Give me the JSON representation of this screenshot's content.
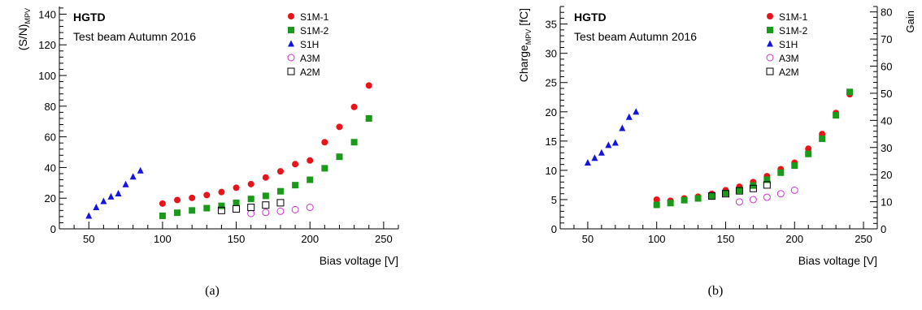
{
  "chart_data": [
    {
      "type": "scatter",
      "panel_caption": "(a)",
      "ylabel": "(S/N)",
      "ylabel_sub": "MPV",
      "xlabel": "Bias voltage [V]",
      "annotations": [
        "HGTD",
        "Test beam Autumn 2016"
      ],
      "xlim": [
        30,
        260
      ],
      "ylim": [
        0,
        145
      ],
      "x_ticks": [
        50,
        100,
        150,
        200,
        250
      ],
      "y_ticks": [
        0,
        20,
        40,
        60,
        80,
        100,
        120,
        140
      ],
      "grid": false,
      "legend_position": "top-right",
      "series": [
        {
          "name": "S1M-1",
          "color": "#e8141a",
          "marker": "filled-circle",
          "x": [
            100,
            110,
            120,
            130,
            140,
            150,
            160,
            170,
            180,
            190,
            200,
            210,
            220,
            230,
            240
          ],
          "y": [
            16.5,
            18.8,
            20.2,
            22,
            24,
            26.8,
            29.2,
            33.5,
            37.5,
            42.2,
            44.6,
            56.5,
            66.5,
            79.5,
            93.5
          ]
        },
        {
          "name": "S1M-2",
          "color": "#1a9a1a",
          "marker": "filled-square",
          "x": [
            100,
            110,
            120,
            130,
            140,
            150,
            160,
            170,
            180,
            190,
            200,
            210,
            220,
            230,
            240
          ],
          "y": [
            8.5,
            10.5,
            12,
            13.5,
            15,
            17,
            19.5,
            21.5,
            24.5,
            28.5,
            32,
            39.5,
            47,
            56.5,
            72
          ]
        },
        {
          "name": "S1H",
          "color": "#1414e0",
          "marker": "filled-triangle",
          "x": [
            50,
            55,
            60,
            65,
            70,
            75,
            80,
            85
          ],
          "y": [
            8.5,
            14,
            18,
            21,
            23,
            29,
            34,
            38
          ]
        },
        {
          "name": "A3M",
          "color": "#cc33cc",
          "marker": "open-circle",
          "x": [
            160,
            170,
            180,
            190,
            200
          ],
          "y": [
            10,
            10.7,
            11.5,
            12.5,
            14
          ]
        },
        {
          "name": "A2M",
          "color": "#000000",
          "marker": "open-square",
          "x": [
            140,
            150,
            160,
            170,
            180
          ],
          "y": [
            12,
            13,
            14,
            15.5,
            17
          ]
        }
      ]
    },
    {
      "type": "scatter",
      "panel_caption": "(b)",
      "ylabel": "Charge",
      "ylabel_sub": "MPV",
      "ylabel_unit": "[fC]",
      "y2label": "Gain",
      "xlabel": "Bias voltage [V]",
      "annotations": [
        "HGTD",
        "Test beam Autumn 2016"
      ],
      "xlim": [
        30,
        260
      ],
      "ylim": [
        0,
        38
      ],
      "y2lim": [
        0,
        82
      ],
      "x_ticks": [
        50,
        100,
        150,
        200,
        250
      ],
      "y_ticks": [
        0,
        5,
        10,
        15,
        20,
        25,
        30,
        35
      ],
      "y2_ticks": [
        0,
        10,
        20,
        30,
        40,
        50,
        60,
        70,
        80
      ],
      "grid": false,
      "legend_position": "top-right",
      "series": [
        {
          "name": "S1M-1",
          "color": "#e8141a",
          "marker": "filled-circle",
          "x": [
            100,
            110,
            120,
            130,
            140,
            150,
            160,
            170,
            180,
            190,
            200,
            210,
            220,
            230,
            240
          ],
          "y": [
            5,
            4.8,
            5.2,
            5.5,
            6,
            6.6,
            7.2,
            8,
            9,
            10.2,
            11.3,
            13.7,
            16.2,
            19.8,
            23
          ]
        },
        {
          "name": "S1M-2",
          "color": "#1a9a1a",
          "marker": "filled-square",
          "x": [
            100,
            110,
            120,
            130,
            140,
            150,
            160,
            170,
            180,
            190,
            200,
            210,
            220,
            230,
            240
          ],
          "y": [
            4.1,
            4.4,
            4.9,
            5.2,
            5.6,
            6.1,
            6.6,
            7.4,
            8.4,
            9.6,
            10.8,
            12.8,
            15.4,
            19.4,
            23.4
          ]
        },
        {
          "name": "S1H",
          "color": "#1414e0",
          "marker": "filled-triangle",
          "x": [
            50,
            55,
            60,
            65,
            70,
            75,
            80,
            85
          ],
          "y": [
            11.3,
            12.1,
            13,
            14.3,
            14.7,
            17.2,
            19.1,
            20
          ]
        },
        {
          "name": "A3M",
          "color": "#cc33cc",
          "marker": "open-circle",
          "x": [
            160,
            170,
            180,
            190,
            200
          ],
          "y": [
            4.6,
            5,
            5.4,
            6,
            6.6
          ]
        },
        {
          "name": "A2M",
          "color": "#000000",
          "marker": "open-square",
          "x": [
            140,
            150,
            160,
            170,
            180
          ],
          "y": [
            5.6,
            6,
            6.5,
            6.9,
            7.5
          ]
        }
      ]
    }
  ]
}
